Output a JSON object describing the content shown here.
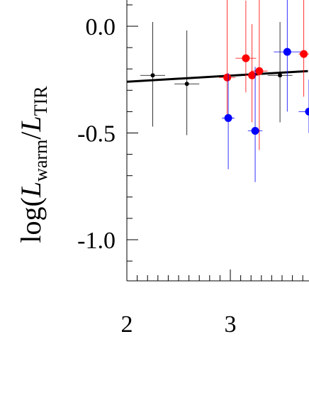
{
  "chart_data": {
    "type": "scatter",
    "ylabel": {
      "prefix": "log(",
      "num_var": "L",
      "num_sub": "warm",
      "slash": "/",
      "den_var": "L",
      "den_sub": "TIR"
    },
    "xlim": [
      2,
      3.75
    ],
    "ylim": [
      -1.2,
      0.1
    ],
    "x_ticks": [
      2,
      3
    ],
    "x_tick_labels": [
      "2",
      "3"
    ],
    "y_ticks": [
      0.0,
      -0.5,
      -1.0
    ],
    "y_tick_labels": [
      "0.0",
      "-0.5",
      "-1.0"
    ],
    "grid": false,
    "fit_line": {
      "color": "#000000",
      "x": [
        2.0,
        3.75
      ],
      "y": [
        -0.26,
        -0.21
      ]
    },
    "series": [
      {
        "color": "#000000",
        "marker_size": "small",
        "points": [
          {
            "x": 2.25,
            "y": -0.23,
            "xerr": 0.12,
            "yerr_up": 0.25,
            "yerr_down": 0.24
          },
          {
            "x": 2.58,
            "y": -0.27,
            "xerr": 0.12,
            "yerr_up": 0.25,
            "yerr_down": 0.24
          },
          {
            "x": 3.48,
            "y": -0.23,
            "xerr": 0.12,
            "yerr_up": 0.25,
            "yerr_down": 0.22
          }
        ]
      },
      {
        "color": "#ff0000",
        "marker_size": "large",
        "points": [
          {
            "x": 2.97,
            "y": -0.24,
            "xerr": 0.08,
            "yerr_up": 0.4,
            "yerr_down": 0.2
          },
          {
            "x": 3.15,
            "y": -0.15,
            "xerr": 0.1,
            "yerr_up": 0.27,
            "yerr_down": 0.16
          },
          {
            "x": 3.21,
            "y": -0.23,
            "xerr": 0.06,
            "yerr_up": 0.24,
            "yerr_down": 0.22
          },
          {
            "x": 3.28,
            "y": -0.21,
            "xerr": 0.08,
            "yerr_up": 0.35,
            "yerr_down": 0.37
          },
          {
            "x": 3.71,
            "y": -0.13,
            "xerr": 0.05,
            "yerr_up": 0.3,
            "yerr_down": 0.2
          }
        ]
      },
      {
        "color": "#0000ff",
        "marker_size": "large",
        "points": [
          {
            "x": 2.98,
            "y": -0.43,
            "xerr": 0.06,
            "yerr_up": 0.21,
            "yerr_down": 0.24
          },
          {
            "x": 3.24,
            "y": -0.49,
            "xerr": 0.07,
            "yerr_up": 0.3,
            "yerr_down": 0.24
          },
          {
            "x": 3.55,
            "y": -0.12,
            "xerr": 0.13,
            "yerr_up": 0.3,
            "yerr_down": 0.28
          },
          {
            "x": 3.76,
            "y": -0.4,
            "xerr": 0.1,
            "yerr_up": 0.15,
            "yerr_down": 0.1
          }
        ]
      }
    ]
  }
}
